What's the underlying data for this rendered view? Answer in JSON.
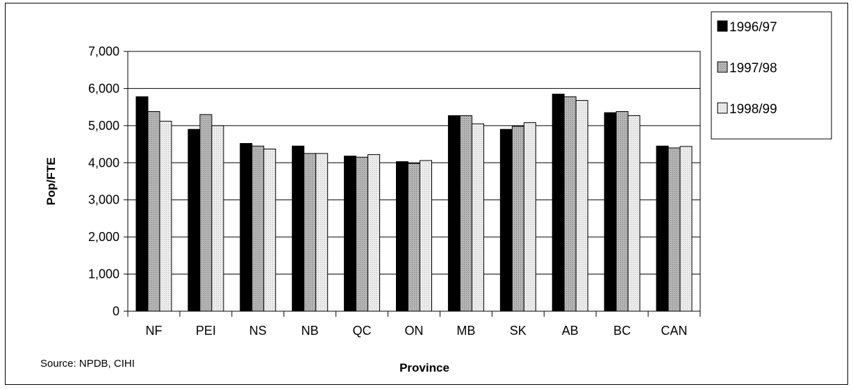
{
  "chart_data": {
    "type": "bar",
    "title": "",
    "xlabel": "Province",
    "ylabel": "Pop/FTE",
    "source": "Source: NPDB, CIHI",
    "categories": [
      "NF",
      "PEI",
      "NS",
      "NB",
      "QC",
      "ON",
      "MB",
      "SK",
      "AB",
      "BC",
      "CAN"
    ],
    "ylim": [
      0,
      7000
    ],
    "yticks": [
      0,
      1000,
      2000,
      3000,
      4000,
      5000,
      6000,
      7000
    ],
    "ytick_labels": [
      "0",
      "1,000",
      "2,000",
      "3,000",
      "4,000",
      "5,000",
      "6,000",
      "7,000"
    ],
    "grid": "horizontal",
    "legend_position": "right",
    "series": [
      {
        "name": "1996/97",
        "color": "#000000",
        "values": [
          5780,
          4900,
          4520,
          4450,
          4180,
          4030,
          5270,
          4900,
          5850,
          5350,
          4450
        ]
      },
      {
        "name": "1997/98",
        "color": "#a6a6a6",
        "values": [
          5380,
          5300,
          4450,
          4250,
          4150,
          3980,
          5270,
          4980,
          5780,
          5380,
          4400
        ]
      },
      {
        "name": "1998/99",
        "color": "#e6e6e6",
        "values": [
          5120,
          5000,
          4370,
          4250,
          4220,
          4060,
          5050,
          5080,
          5680,
          5270,
          4440
        ]
      }
    ]
  }
}
